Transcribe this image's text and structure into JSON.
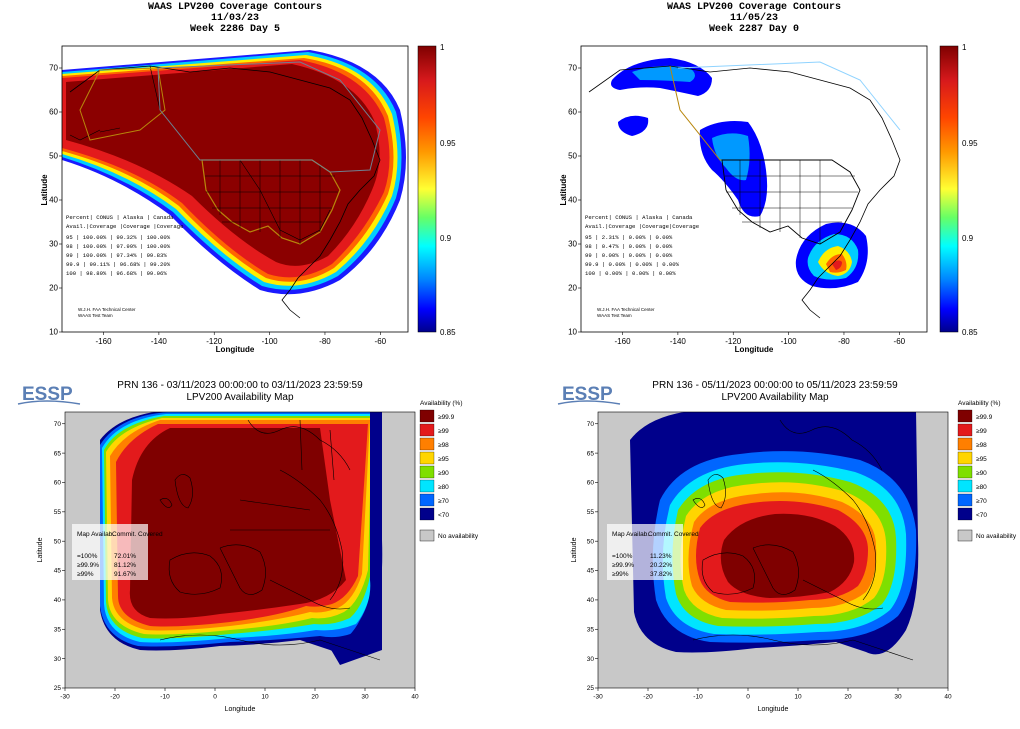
{
  "panels": [
    {
      "id": "waas-1",
      "title_lines": [
        "WAAS LPV200 Coverage Contours",
        "11/03/23",
        "Week 2286 Day 5"
      ],
      "xlabel": "Longitude",
      "ylabel": "Latitude",
      "xticks": [
        "-160",
        "-140",
        "-120",
        "-100",
        "-80",
        "-60"
      ],
      "yticks": [
        "10",
        "20",
        "30",
        "40",
        "50",
        "60",
        "70"
      ],
      "colorbar_ticks": [
        "1",
        "0.95",
        "0.9",
        "0.85"
      ],
      "table": [
        "Percent| CONUS    | Alaska  | Canada",
        " Avail.|Coverage |Coverage |Coverage",
        "  95   | 100.00%  | 99.32%  | 100.00%",
        "  98   | 100.00%  | 97.99%  | 100.00%",
        "  99   | 100.00%  | 97.34%  | 99.83%",
        " 99.9  |  99.11%  | 96.68%  | 99.20%",
        " 100   |  98.89%  | 96.68%  | 99.06%"
      ],
      "credit": [
        "W.J.H. FAA Technical Center",
        "WAAS Test Team"
      ]
    },
    {
      "id": "waas-2",
      "title_lines": [
        "WAAS LPV200 Coverage Contours",
        "11/05/23",
        "Week 2287 Day 0"
      ],
      "xlabel": "Longitude",
      "ylabel": "Latitude",
      "xticks": [
        "-160",
        "-140",
        "-120",
        "-100",
        "-80",
        "-60"
      ],
      "yticks": [
        "10",
        "20",
        "30",
        "40",
        "50",
        "60",
        "70"
      ],
      "colorbar_ticks": [
        "1",
        "0.95",
        "0.9",
        "0.85"
      ],
      "table": [
        "Percent| CONUS   | Alaska | Canada",
        " Avail.|Coverage |Coverage|Coverage",
        "  95   |  2.31%  | 0.00%  | 0.00%",
        "  98   |  0.47%  | 0.00%  | 0.00%",
        "  99   |  0.00%  | 0.00%  | 0.00%",
        " 99.9  |  0.00%  | 0.00%  | 0.00%",
        " 100   |  0.00%  | 0.00%  | 0.00%"
      ],
      "credit": [
        "W.J.H. FAA Technical Center",
        "WAAS Test Team"
      ]
    },
    {
      "id": "egnos-1",
      "logo": "ESSP",
      "title_lines": [
        "PRN 136 - 03/11/2023 00:00:00 to 03/11/2023 23:59:59",
        "LPV200 Availability Map"
      ],
      "xlabel": "Longitude",
      "ylabel": "Latitude",
      "xticks": [
        "-30",
        "-20",
        "-10",
        "0",
        "10",
        "20",
        "30",
        "40"
      ],
      "yticks": [
        "25",
        "30",
        "35",
        "40",
        "45",
        "50",
        "55",
        "60",
        "65",
        "70"
      ],
      "legend_title": "Availability (%)",
      "legend": [
        "≥99.9",
        "≥99",
        "≥98",
        "≥95",
        "≥90",
        "≥80",
        "≥70",
        "<70"
      ],
      "no_availability": "No availability",
      "stats_headers": [
        "Map Availab.",
        "Commit. Covered"
      ],
      "stats": [
        [
          "=100%",
          "72.01%"
        ],
        [
          "≥99.9%",
          "81.12%"
        ],
        [
          "≥99%",
          "91.67%"
        ]
      ]
    },
    {
      "id": "egnos-2",
      "logo": "ESSP",
      "title_lines": [
        "PRN 136 - 05/11/2023 00:00:00 to 05/11/2023 23:59:59",
        "LPV200 Availability Map"
      ],
      "xlabel": "Longitude",
      "ylabel": "Latitude",
      "xticks": [
        "-30",
        "-20",
        "-10",
        "0",
        "10",
        "20",
        "30",
        "40"
      ],
      "yticks": [
        "25",
        "30",
        "35",
        "40",
        "45",
        "50",
        "55",
        "60",
        "65",
        "70"
      ],
      "legend_title": "Availability (%)",
      "legend": [
        "≥99.9",
        "≥99",
        "≥98",
        "≥95",
        "≥90",
        "≥80",
        "≥70",
        "<70"
      ],
      "no_availability": "No availability",
      "stats_headers": [
        "Map Availab.",
        "Commit. Covered"
      ],
      "stats": [
        [
          "=100%",
          "11.23%"
        ],
        [
          "≥99.9%",
          "20.22%"
        ],
        [
          "≥99%",
          "37.82%"
        ]
      ]
    }
  ],
  "colors": {
    "legend": [
      "#7f0000",
      "#e31a1c",
      "#ff7f00",
      "#ffd500",
      "#7fdf00",
      "#00e5ff",
      "#0066ff",
      "#00008b"
    ],
    "ocean_gray": "#c8c8c8",
    "no_availability": "#c8c8c8",
    "essp_blue": "#5b7fb5"
  },
  "chart_data": [
    {
      "type": "heatmap",
      "title": "WAAS LPV200 Coverage Contours 11/03/23 Week 2286 Day 5",
      "xlabel": "Longitude",
      "ylabel": "Latitude",
      "xlim": [
        -175,
        -50
      ],
      "ylim": [
        10,
        75
      ],
      "colorbar": [
        0.85,
        1
      ],
      "series": [
        {
          "name": "CONUS",
          "values": [
            100.0,
            100.0,
            100.0,
            99.11,
            98.89
          ]
        },
        {
          "name": "Alaska",
          "values": [
            99.32,
            97.99,
            97.34,
            96.68,
            96.68
          ]
        },
        {
          "name": "Canada",
          "values": [
            100.0,
            100.0,
            99.83,
            99.2,
            99.06
          ]
        }
      ],
      "categories": [
        "95",
        "98",
        "99",
        "99.9",
        "100"
      ]
    },
    {
      "type": "heatmap",
      "title": "WAAS LPV200 Coverage Contours 11/05/23 Week 2287 Day 0",
      "xlabel": "Longitude",
      "ylabel": "Latitude",
      "xlim": [
        -175,
        -50
      ],
      "ylim": [
        10,
        75
      ],
      "colorbar": [
        0.85,
        1
      ],
      "series": [
        {
          "name": "CONUS",
          "values": [
            2.31,
            0.47,
            0.0,
            0.0,
            0.0
          ]
        },
        {
          "name": "Alaska",
          "values": [
            0.0,
            0.0,
            0.0,
            0.0,
            0.0
          ]
        },
        {
          "name": "Canada",
          "values": [
            0.0,
            0.0,
            0.0,
            0.0,
            0.0
          ]
        }
      ],
      "categories": [
        "95",
        "98",
        "99",
        "99.9",
        "100"
      ]
    },
    {
      "type": "heatmap",
      "title": "PRN 136 - 03/11/2023 00:00:00 to 03/11/2023 23:59:59 LPV200 Availability Map",
      "xlabel": "Longitude",
      "ylabel": "Latitude",
      "xlim": [
        -30,
        40
      ],
      "ylim": [
        25,
        72
      ],
      "categories": [
        "=100%",
        "≥99.9%",
        "≥99%"
      ],
      "series": [
        {
          "name": "Commit. Covered",
          "values": [
            72.01,
            81.12,
            91.67
          ]
        }
      ]
    },
    {
      "type": "heatmap",
      "title": "PRN 136 - 05/11/2023 00:00:00 to 05/11/2023 23:59:59 LPV200 Availability Map",
      "xlabel": "Longitude",
      "ylabel": "Latitude",
      "xlim": [
        -30,
        40
      ],
      "ylim": [
        25,
        72
      ],
      "categories": [
        "=100%",
        "≥99.9%",
        "≥99%"
      ],
      "series": [
        {
          "name": "Commit. Covered",
          "values": [
            11.23,
            20.22,
            37.82
          ]
        }
      ]
    }
  ]
}
